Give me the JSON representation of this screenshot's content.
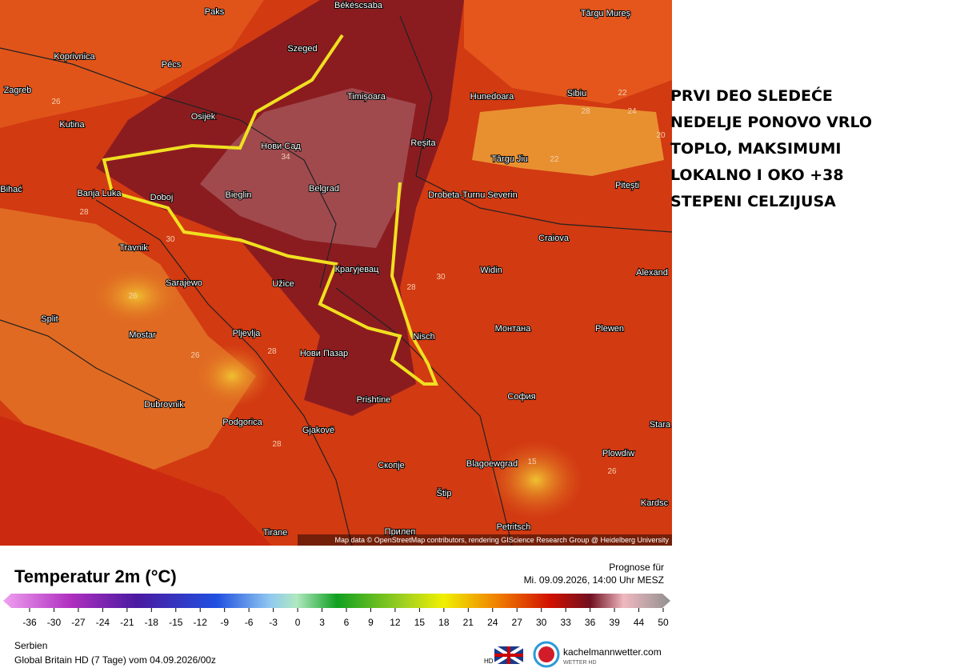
{
  "map": {
    "cities": [
      "Békéscsaba",
      "Paks",
      "Târgu Mureș",
      "Koprivnica",
      "Pécs",
      "Szeged",
      "Sibiu",
      "Zagreb",
      "Hunedoara",
      "Timișoara",
      "Kutina",
      "Osijek",
      "Нови Сад",
      "Reșita",
      "Târgu Jiu",
      "Pitești",
      "Bihać",
      "Banja Luka",
      "Doboj",
      "Bieglin",
      "Belgrad",
      "Drobeta-Turnu Severin",
      "Craiova",
      "Travnik",
      "Sarajewo",
      "Užice",
      "Крагујевац",
      "Widin",
      "Alexand",
      "Split",
      "Mostar",
      "Pljevlja",
      "Монтана",
      "Plewen",
      "Nisch",
      "Нови Пазар",
      "София",
      "Dubrovnik",
      "Prishtine",
      "Podgorica",
      "Gjakovë",
      "Stara",
      "Plowdiw",
      "Скопје",
      "Blagoewgrad",
      "Štip",
      "Kardsc",
      "Petritsch",
      "Tirane",
      "Прилеп"
    ],
    "contour_labels": [
      "26",
      "22",
      "28",
      "24",
      "20",
      "22",
      "34",
      "28",
      "30",
      "26",
      "28",
      "30",
      "28",
      "26",
      "28",
      "26",
      "15"
    ],
    "attribution": "Map data © OpenStreetMap contributors, rendering GIScience Research Group @ Heidelberg University"
  },
  "annotation": [
    "PRVI DEO SLEDEĆE",
    "NEDELJE PONOVO VRLO",
    "TOPLO, MAKSIMUMI",
    "LOKALNO I OKO +38",
    "STEPENI CELZIJUSA"
  ],
  "legend": {
    "title": "Temperatur 2m (°C)",
    "forecast_label": "Prognose für",
    "forecast_time": "Mi. 09.09.2026, 14:00 Uhr MESZ",
    "ticks": [
      -36,
      -30,
      -27,
      -24,
      -21,
      -18,
      -15,
      -12,
      -9,
      -6,
      -3,
      0,
      3,
      6,
      9,
      12,
      15,
      18,
      21,
      24,
      27,
      30,
      33,
      36,
      39,
      44,
      50
    ]
  },
  "footer": {
    "region": "Serbien",
    "model": "Global Britain HD (7 Tage) vom 04.09.2026/00z",
    "brand": "kachelmannwetter.com",
    "brand_sub": "WETTER HD",
    "hd": "HD"
  }
}
